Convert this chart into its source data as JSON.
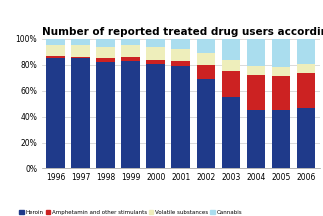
{
  "title": "Number of reported treated drug users according to primary drugs",
  "years": [
    "1996",
    "1997",
    "1998",
    "1999",
    "2000",
    "2001",
    "2002",
    "2003",
    "2004",
    "2005",
    "2006"
  ],
  "heroin": [
    85,
    85,
    82,
    83,
    81,
    79,
    69,
    55,
    45,
    45,
    47
  ],
  "amphetamin": [
    2,
    1,
    3,
    3,
    3,
    4,
    11,
    20,
    27,
    26,
    27
  ],
  "volatile": [
    8,
    9,
    9,
    9,
    10,
    9,
    9,
    9,
    7,
    7,
    7
  ],
  "cannabis": [
    5,
    5,
    6,
    5,
    6,
    8,
    11,
    16,
    21,
    22,
    19
  ],
  "colors": {
    "heroin": "#1F3A8A",
    "amphetamin": "#CC2222",
    "volatile": "#EEEEBB",
    "cannabis": "#AADDEE"
  },
  "legend_labels": [
    "Heroin",
    "Amphetamin and other stimulants",
    "Volatile substances",
    "Cannabis"
  ],
  "ylim": [
    0,
    100
  ],
  "yticks": [
    0,
    20,
    40,
    60,
    80,
    100
  ],
  "ytick_labels": [
    "0%",
    "20%",
    "40%",
    "60%",
    "80%",
    "100%"
  ],
  "background_color": "#ffffff",
  "title_fontsize": 7.5,
  "tick_fontsize": 5.5
}
